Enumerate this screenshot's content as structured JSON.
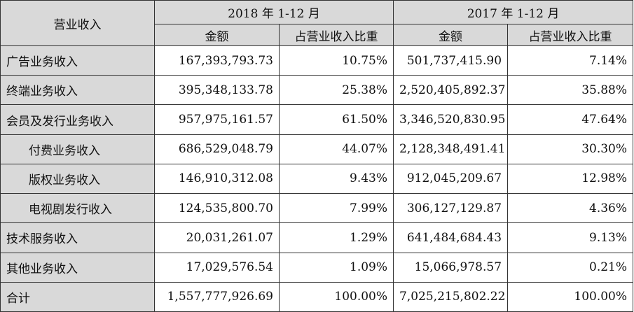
{
  "header": {
    "row_label": "营业收入",
    "period_2018": "2018 年 1-12 月",
    "period_2017": "2017 年 1-12 月",
    "amount": "金额",
    "share": "占营业收入比重"
  },
  "rows": [
    {
      "label": "广告业务收入",
      "indent": false,
      "amount_2018": "167,393,793.73",
      "share_2018": "10.75%",
      "amount_2017": "501,737,415.90",
      "share_2017": "7.14%"
    },
    {
      "label": "终端业务收入",
      "indent": false,
      "amount_2018": "395,348,133.78",
      "share_2018": "25.38%",
      "amount_2017": "2,520,405,892.37",
      "share_2017": "35.88%"
    },
    {
      "label": "会员及发行业务收入",
      "indent": false,
      "amount_2018": "957,975,161.57",
      "share_2018": "61.50%",
      "amount_2017": "3,346,520,830.95",
      "share_2017": "47.64%"
    },
    {
      "label": "付费业务收入",
      "indent": true,
      "amount_2018": "686,529,048.79",
      "share_2018": "44.07%",
      "amount_2017": "2,128,348,491.41",
      "share_2017": "30.30%"
    },
    {
      "label": "版权业务收入",
      "indent": true,
      "amount_2018": "146,910,312.08",
      "share_2018": "9.43%",
      "amount_2017": "912,045,209.67",
      "share_2017": "12.98%"
    },
    {
      "label": "电视剧发行收入",
      "indent": true,
      "amount_2018": "124,535,800.70",
      "share_2018": "7.99%",
      "amount_2017": "306,127,129.87",
      "share_2017": "4.36%"
    },
    {
      "label": "技术服务收入",
      "indent": false,
      "amount_2018": "20,031,261.07",
      "share_2018": "1.29%",
      "amount_2017": "641,484,684.43",
      "share_2017": "9.13%"
    },
    {
      "label": "其他业务收入",
      "indent": false,
      "amount_2018": "17,029,576.54",
      "share_2018": "1.09%",
      "amount_2017": "15,066,978.57",
      "share_2017": "0.21%"
    },
    {
      "label": "合计",
      "indent": false,
      "amount_2018": "1,557,777,926.69",
      "share_2018": "100.00%",
      "amount_2017": "7,025,215,802.22",
      "share_2017": "100.00%"
    }
  ]
}
